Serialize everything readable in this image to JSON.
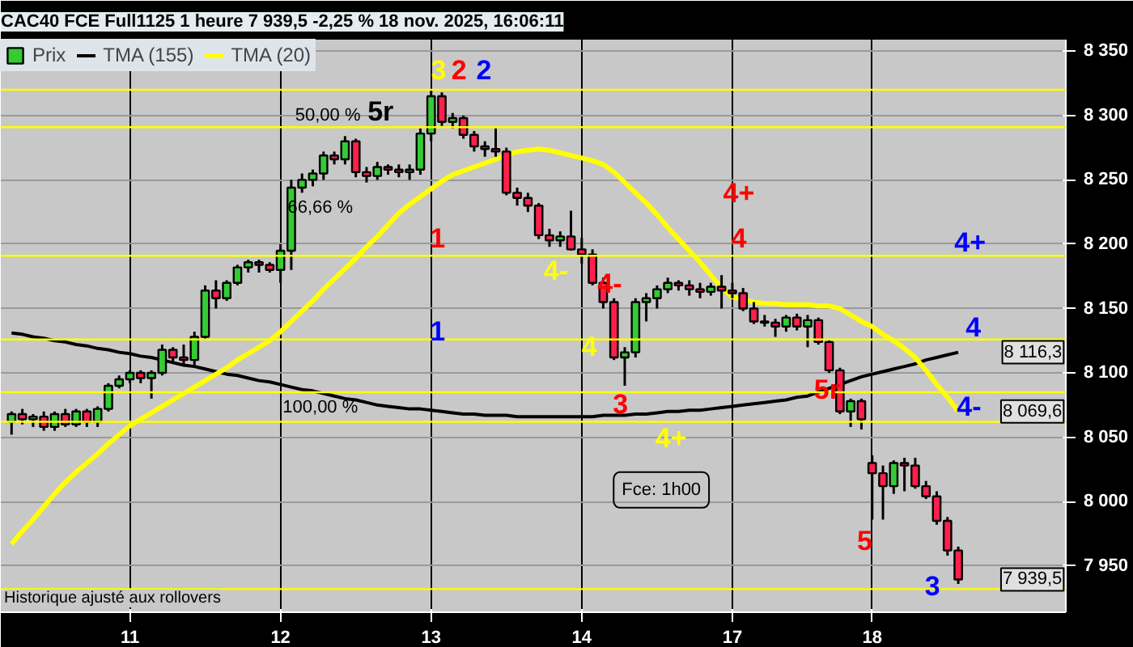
{
  "chart_data": {
    "type": "candlestick",
    "title": "CAC40 FCE Full1125 1 heure 7 939,5 -2,25 % 18 nov. 2025, 16:06:11",
    "categories": [
      null,
      null,
      null,
      null,
      null,
      null,
      null,
      null,
      null,
      null,
      null,
      "11",
      null,
      null,
      null,
      null,
      null,
      null,
      null,
      null,
      null,
      null,
      null,
      null,
      null,
      "12",
      null,
      null,
      null,
      null,
      null,
      null,
      null,
      null,
      null,
      null,
      null,
      null,
      null,
      "13",
      null,
      null,
      null,
      null,
      null,
      null,
      null,
      null,
      null,
      null,
      null,
      null,
      null,
      "14",
      null,
      null,
      null,
      null,
      null,
      null,
      null,
      null,
      null,
      null,
      null,
      null,
      null,
      "17",
      null,
      null,
      null,
      null,
      null,
      null,
      null,
      null,
      null,
      null,
      null,
      null,
      "18",
      null,
      null,
      null,
      null,
      null,
      null,
      null,
      null
    ],
    "series": [
      {
        "name": "Prix",
        "ohlc": [
          [
            8062,
            8070,
            8052,
            8068
          ],
          [
            8068,
            8072,
            8060,
            8064
          ],
          [
            8064,
            8068,
            8058,
            8066
          ],
          [
            8066,
            8070,
            8055,
            8058
          ],
          [
            8058,
            8070,
            8055,
            8068
          ],
          [
            8068,
            8072,
            8058,
            8060
          ],
          [
            8060,
            8072,
            8058,
            8070
          ],
          [
            8070,
            8072,
            8058,
            8062
          ],
          [
            8062,
            8074,
            8058,
            8072
          ],
          [
            8072,
            8092,
            8070,
            8090
          ],
          [
            8090,
            8098,
            8088,
            8095
          ],
          [
            8095,
            8102,
            8092,
            8100
          ],
          [
            8100,
            8102,
            8092,
            8096
          ],
          [
            8096,
            8102,
            8080,
            8100
          ],
          [
            8100,
            8122,
            8098,
            8118
          ],
          [
            8118,
            8120,
            8108,
            8112
          ],
          [
            8112,
            8122,
            8106,
            8110
          ],
          [
            8110,
            8132,
            8106,
            8128
          ],
          [
            8128,
            8168,
            8126,
            8164
          ],
          [
            8164,
            8172,
            8150,
            8158
          ],
          [
            8158,
            8172,
            8156,
            8170
          ],
          [
            8170,
            8184,
            8168,
            8182
          ],
          [
            8182,
            8188,
            8178,
            8186
          ],
          [
            8186,
            8188,
            8178,
            8184
          ],
          [
            8184,
            8186,
            8178,
            8180
          ],
          [
            8180,
            8200,
            8170,
            8195
          ],
          [
            8195,
            8250,
            8180,
            8244
          ],
          [
            8244,
            8255,
            8240,
            8250
          ],
          [
            8250,
            8258,
            8245,
            8255
          ],
          [
            8255,
            8272,
            8250,
            8269
          ],
          [
            8269,
            8272,
            8262,
            8266
          ],
          [
            8266,
            8284,
            8262,
            8280
          ],
          [
            8280,
            8282,
            8252,
            8256
          ],
          [
            8256,
            8260,
            8248,
            8253
          ],
          [
            8253,
            8264,
            8250,
            8260
          ],
          [
            8260,
            8262,
            8254,
            8258
          ],
          [
            8258,
            8262,
            8252,
            8256
          ],
          [
            8256,
            8262,
            8250,
            8258
          ],
          [
            8258,
            8290,
            8254,
            8286
          ],
          [
            8286,
            8320,
            8280,
            8315
          ],
          [
            8315,
            8318,
            8292,
            8295
          ],
          [
            8295,
            8302,
            8290,
            8298
          ],
          [
            8298,
            8300,
            8282,
            8285
          ],
          [
            8285,
            8288,
            8272,
            8276
          ],
          [
            8276,
            8280,
            8268,
            8274
          ],
          [
            8274,
            8290,
            8268,
            8272
          ],
          [
            8272,
            8275,
            8238,
            8240
          ],
          [
            8240,
            8244,
            8230,
            8236
          ],
          [
            8236,
            8240,
            8225,
            8230
          ],
          [
            8230,
            8232,
            8204,
            8207
          ],
          [
            8207,
            8212,
            8198,
            8203
          ],
          [
            8203,
            8210,
            8198,
            8206
          ],
          [
            8206,
            8226,
            8195,
            8196
          ],
          [
            8196,
            8205,
            8185,
            8192
          ],
          [
            8192,
            8196,
            8168,
            8170
          ],
          [
            8170,
            8174,
            8150,
            8155
          ],
          [
            8155,
            8158,
            8110,
            8112
          ],
          [
            8112,
            8120,
            8090,
            8116
          ],
          [
            8116,
            8158,
            8112,
            8155
          ],
          [
            8155,
            8162,
            8140,
            8158
          ],
          [
            8158,
            8168,
            8150,
            8165
          ],
          [
            8165,
            8174,
            8162,
            8170
          ],
          [
            8170,
            8172,
            8164,
            8168
          ],
          [
            8168,
            8172,
            8160,
            8165
          ],
          [
            8165,
            8170,
            8158,
            8163
          ],
          [
            8163,
            8170,
            8160,
            8167
          ],
          [
            8167,
            8176,
            8150,
            8164
          ],
          [
            8164,
            8170,
            8158,
            8162
          ],
          [
            8162,
            8166,
            8148,
            8150
          ],
          [
            8150,
            8155,
            8138,
            8140
          ],
          [
            8140,
            8145,
            8136,
            8139
          ],
          [
            8139,
            8142,
            8128,
            8136
          ],
          [
            8136,
            8145,
            8132,
            8143
          ],
          [
            8143,
            8146,
            8133,
            8136
          ],
          [
            8136,
            8145,
            8120,
            8141
          ],
          [
            8141,
            8143,
            8122,
            8124
          ],
          [
            8124,
            8126,
            8100,
            8102
          ],
          [
            8102,
            8104,
            8068,
            8070
          ],
          [
            8070,
            8080,
            8058,
            8078
          ],
          [
            8078,
            8080,
            8056,
            8064
          ],
          [
            8030,
            8036,
            7986,
            8022
          ],
          [
            8022,
            8028,
            7986,
            8012
          ],
          [
            8012,
            8032,
            8006,
            8030
          ],
          [
            8030,
            8034,
            8008,
            8028
          ],
          [
            8028,
            8034,
            8010,
            8012
          ],
          [
            8012,
            8016,
            8002,
            8004
          ],
          [
            8004,
            8008,
            7982,
            7985
          ],
          [
            7985,
            7988,
            7958,
            7962
          ],
          [
            7962,
            7965,
            7936,
            7939.5
          ]
        ],
        "colors": [
          "#33cc33",
          "#ff1f4b",
          "#33cc33",
          "#ff1f4b",
          "#33cc33",
          "#ff1f4b",
          "#33cc33",
          "#ff1f4b",
          "#33cc33",
          "#33cc33",
          "#33cc33",
          "#33cc33",
          "#ff1f4b",
          "#33cc33",
          "#33cc33",
          "#ff1f4b",
          "#ff1f4b",
          "#33cc33",
          "#33cc33",
          "#ff1f4b",
          "#33cc33",
          "#33cc33",
          "#33cc33",
          "#ff1f4b",
          "#ff1f4b",
          "#33cc33",
          "#33cc33",
          "#33cc33",
          "#33cc33",
          "#33cc33",
          "#ff1f4b",
          "#33cc33",
          "#ff1f4b",
          "#ff1f4b",
          "#33cc33",
          "#ff1f4b",
          "#ff1f4b",
          "#33cc33",
          "#33cc33",
          "#33cc33",
          "#ff1f4b",
          "#33cc33",
          "#ff1f4b",
          "#ff1f4b",
          "#ff1f4b",
          "#ff1f4b",
          "#ff1f4b",
          "#ff1f4b",
          "#ff1f4b",
          "#ff1f4b",
          "#ff1f4b",
          "#33cc33",
          "#ff1f4b",
          "#ff1f4b",
          "#ff1f4b",
          "#ff1f4b",
          "#ff1f4b",
          "#33cc33",
          "#33cc33",
          "#33cc33",
          "#33cc33",
          "#33cc33",
          "#ff1f4b",
          "#ff1f4b",
          "#ff1f4b",
          "#33cc33",
          "#ff1f4b",
          "#ff1f4b",
          "#ff1f4b",
          "#ff1f4b",
          "#ff1f4b",
          "#ff1f4b",
          "#33cc33",
          "#ff1f4b",
          "#33cc33",
          "#ff1f4b",
          "#ff1f4b",
          "#ff1f4b",
          "#33cc33",
          "#ff1f4b",
          "#ff1f4b",
          "#ff1f4b",
          "#33cc33",
          "#ff1f4b",
          "#ff1f4b",
          "#ff1f4b",
          "#ff1f4b",
          "#ff1f4b",
          "#ff1f4b"
        ]
      },
      {
        "name": "TMA (155)",
        "type": "line",
        "color": "#000000",
        "values": [
          8131,
          8130,
          8128,
          8127,
          8125,
          8124,
          8122,
          8121,
          8119,
          8118,
          8116,
          8115,
          8113,
          8112,
          8110,
          8108,
          8106,
          8105,
          8103,
          8101,
          8099,
          8098,
          8096,
          8094,
          8093,
          8091,
          8089,
          8087,
          8086,
          8084,
          8082,
          8080,
          8079,
          8077,
          8075,
          8074,
          8073,
          8072,
          8072,
          8071,
          8070,
          8069,
          8068,
          8068,
          8067,
          8067,
          8067,
          8066,
          8066,
          8066,
          8066,
          8066,
          8066,
          8066,
          8066,
          8067,
          8067,
          8067,
          8068,
          8068,
          8069,
          8070,
          8070,
          8071,
          8071,
          8072,
          8073,
          8074,
          8075,
          8076,
          8077,
          8078,
          8079,
          8081,
          8082,
          8085,
          8088,
          8091,
          8094,
          8097,
          8099,
          8101,
          8103,
          8105,
          8107,
          8110,
          8112,
          8114,
          8116
        ]
      },
      {
        "name": "TMA (20)",
        "type": "line",
        "color": "#ffff00",
        "values": [
          7967,
          7977,
          7986,
          7996,
          8006,
          8015,
          8023,
          8030,
          8037,
          8045,
          8052,
          8059,
          8064,
          8069,
          8074,
          8079,
          8084,
          8089,
          8094,
          8099,
          8104,
          8110,
          8115,
          8120,
          8125,
          8132,
          8140,
          8148,
          8156,
          8165,
          8173,
          8181,
          8189,
          8198,
          8206,
          8215,
          8224,
          8231,
          8237,
          8243,
          8249,
          8254,
          8257,
          8260,
          8263,
          8266,
          8269,
          8272,
          8273,
          8274,
          8273,
          8271,
          8269,
          8267,
          8265,
          8262,
          8256,
          8248,
          8240,
          8232,
          8223,
          8213,
          8204,
          8195,
          8186,
          8176,
          8166,
          8159,
          8157,
          8155,
          8154,
          8154,
          8153,
          8153,
          8153,
          8152,
          8152,
          8150,
          8145,
          8140,
          8136,
          8130,
          8125,
          8119,
          8112,
          8102,
          8091,
          8081,
          8070
        ]
      }
    ],
    "ylim": [
      7914,
      8359
    ],
    "yticks": [
      {
        "value": 7950,
        "label": "7 950"
      },
      {
        "value": 8000,
        "label": "8 000"
      },
      {
        "value": 8050,
        "label": "8 050"
      },
      {
        "value": 8100,
        "label": "8 100"
      },
      {
        "value": 8150,
        "label": "8 150"
      },
      {
        "value": 8200,
        "label": "8 200"
      },
      {
        "value": 8250,
        "label": "8 250"
      },
      {
        "value": 8300,
        "label": "8 300"
      },
      {
        "value": 8350,
        "label": "8 350"
      }
    ],
    "grid": true,
    "legend": "top left",
    "ref_lines": [
      {
        "axis": "y",
        "value": 8320,
        "color": "#ffff00"
      },
      {
        "axis": "y",
        "value": 8291,
        "color": "#ffff00"
      },
      {
        "axis": "y",
        "value": 8191,
        "color": "#ffff00"
      },
      {
        "axis": "y",
        "value": 8126,
        "color": "#ffff00"
      },
      {
        "axis": "y",
        "value": 8085,
        "color": "#ffff00"
      },
      {
        "axis": "y",
        "value": 8062,
        "color": "#ffff00"
      },
      {
        "axis": "y",
        "value": 7932,
        "color": "#ffff00"
      }
    ],
    "annotations": [
      "50,00 %",
      "5r",
      "66,66 %",
      "100,00 %",
      "3",
      "2",
      "2",
      "1",
      "1",
      "4-",
      "4",
      "3",
      "4-",
      "4+",
      "4+",
      "4",
      "5r",
      "5",
      "3",
      "4+",
      "4",
      "4-",
      "Fce: 1h00",
      "Historique ajusté aux rollovers",
      "8 116,3",
      "8 069,6",
      "7 939,5"
    ]
  }
}
